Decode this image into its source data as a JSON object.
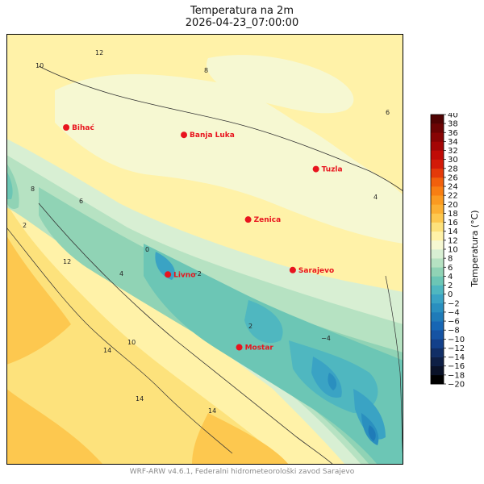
{
  "title": "Temperatura na 2m",
  "subtitle": "2026-04-23_07:00:00",
  "footer": "WRF-ARW v4.6.1, Federalni hidrometeorološki zavod Sarajevo",
  "colorbar": {
    "label": "Temperatura (°C)",
    "ticks": [
      40,
      38,
      36,
      34,
      32,
      30,
      28,
      26,
      24,
      22,
      20,
      18,
      16,
      14,
      12,
      10,
      8,
      6,
      4,
      2,
      0,
      -2,
      -4,
      -6,
      -8,
      -10,
      -12,
      -14,
      -16,
      -18,
      -20
    ],
    "tick_labels": [
      "40",
      "38",
      "36",
      "34",
      "32",
      "30",
      "28",
      "26",
      "24",
      "22",
      "20",
      "18",
      "16",
      "14",
      "12",
      "10",
      "8",
      "6",
      "4",
      "2",
      "0",
      "−2",
      "−4",
      "−6",
      "−8",
      "−10",
      "−12",
      "−14",
      "−16",
      "−18",
      "−20"
    ],
    "colors": {
      "-20": "#000000",
      "-18": "#0a1228",
      "-16": "#0e1f45",
      "-14": "#112e66",
      "-12": "#13408a",
      "-10": "#1553a3",
      "-8": "#1766b4",
      "-6": "#1f7bb8",
      "-4": "#2a8fbf",
      "-2": "#3aa3c4",
      "0": "#4fb7c0",
      "2": "#6cc6b5",
      "4": "#90d3b5",
      "6": "#b6e2c2",
      "8": "#d8efd3",
      "10": "#f6f8d2",
      "12": "#fff2a8",
      "14": "#fde27c",
      "16": "#fdc84f",
      "18": "#fcb033",
      "20": "#fb9a20",
      "22": "#f87e12",
      "24": "#f1600c",
      "26": "#e43a0a",
      "28": "#d31a08",
      "30": "#c00b06",
      "32": "#a40605",
      "34": "#880404",
      "36": "#6c0303",
      "38": "#500202"
    }
  },
  "cities": [
    {
      "name": "Bihać",
      "lon": 15.87,
      "lat": 44.82
    },
    {
      "name": "Banja Luka",
      "lon": 17.19,
      "lat": 44.77
    },
    {
      "name": "Tuzla",
      "lon": 18.67,
      "lat": 44.54
    },
    {
      "name": "Zenica",
      "lon": 17.91,
      "lat": 44.2
    },
    {
      "name": "Livno",
      "lon": 17.01,
      "lat": 43.83
    },
    {
      "name": "Sarajevo",
      "lon": 18.41,
      "lat": 43.86
    },
    {
      "name": "Mostar",
      "lon": 17.81,
      "lat": 43.34
    }
  ],
  "contour_labels": [
    "12",
    "10",
    "8",
    "6",
    "4",
    "2",
    "0",
    "-2",
    "-4",
    "12",
    "14",
    "14",
    "14",
    "10",
    "8",
    "6",
    "4",
    "2"
  ],
  "colors": {
    "city_marker": "#e8141e",
    "city_label": "#e8141e"
  }
}
